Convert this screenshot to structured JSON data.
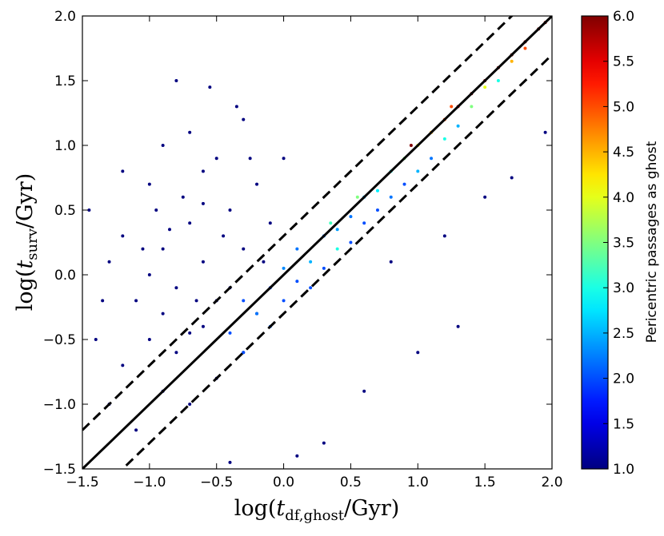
{
  "chart_data": {
    "type": "scatter",
    "xlabel": [
      "log(",
      "t",
      "df,ghost",
      "/Gyr)"
    ],
    "ylabel": [
      "log(",
      "t",
      "surv",
      "/Gyr)"
    ],
    "colorbar_label": "Pericentric passages as ghost",
    "colormap": "jet",
    "xlim": [
      -1.5,
      2.0
    ],
    "ylim": [
      -1.5,
      2.0
    ],
    "clim": [
      1.0,
      6.0
    ],
    "xticks": [
      {
        "value": -1.5,
        "label": "−1.5"
      },
      {
        "value": -1.0,
        "label": "−1.0"
      },
      {
        "value": -0.5,
        "label": "−0.5"
      },
      {
        "value": 0.0,
        "label": "0.0"
      },
      {
        "value": 0.5,
        "label": "0.5"
      },
      {
        "value": 1.0,
        "label": "1.0"
      },
      {
        "value": 1.5,
        "label": "1.5"
      },
      {
        "value": 2.0,
        "label": "2.0"
      }
    ],
    "yticks": [
      {
        "value": -1.5,
        "label": "−1.5"
      },
      {
        "value": -1.0,
        "label": "−1.0"
      },
      {
        "value": -0.5,
        "label": "−0.5"
      },
      {
        "value": 0.0,
        "label": "0.0"
      },
      {
        "value": 0.5,
        "label": "0.5"
      },
      {
        "value": 1.0,
        "label": "1.0"
      },
      {
        "value": 1.5,
        "label": "1.5"
      },
      {
        "value": 2.0,
        "label": "2.0"
      }
    ],
    "cticks": [
      {
        "value": 1.0,
        "label": "1.0"
      },
      {
        "value": 1.5,
        "label": "1.5"
      },
      {
        "value": 2.0,
        "label": "2.0"
      },
      {
        "value": 2.5,
        "label": "2.5"
      },
      {
        "value": 3.0,
        "label": "3.0"
      },
      {
        "value": 3.5,
        "label": "3.5"
      },
      {
        "value": 4.0,
        "label": "4.0"
      },
      {
        "value": 4.5,
        "label": "4.5"
      },
      {
        "value": 5.0,
        "label": "5.0"
      },
      {
        "value": 5.5,
        "label": "5.5"
      },
      {
        "value": 6.0,
        "label": "6.0"
      }
    ],
    "lines": [
      {
        "intercept": 0,
        "style": "solid"
      },
      {
        "intercept": 0.3,
        "style": "dashed"
      },
      {
        "intercept": -0.3,
        "style": "dashed"
      }
    ],
    "x": [
      -1.2,
      -1.0,
      -0.9,
      -0.8,
      -0.7,
      -0.6,
      -0.5,
      -0.9,
      -1.1,
      -0.75,
      -0.6,
      -0.4,
      -0.3,
      -1.3,
      -1.4,
      -1.2,
      -1.0,
      -0.8,
      -0.6,
      -0.4,
      -0.5,
      -0.3,
      -0.7,
      -0.9,
      -1.0,
      -1.2,
      -0.8,
      -0.55,
      -0.35,
      -0.2,
      -0.1,
      -0.2,
      -1.3,
      -1.1,
      -0.9,
      -0.7,
      -0.5,
      -1.45,
      -1.35,
      -0.65,
      -0.85,
      -0.95,
      -0.45,
      -0.25,
      -0.15,
      -1.05,
      -0.6,
      -0.7,
      -0.3,
      0.0,
      0.3,
      0.6,
      1.0,
      1.3,
      1.7,
      0.8,
      1.2,
      -0.4,
      0.1,
      1.95,
      1.5,
      -0.4,
      -0.3,
      -0.3,
      -0.2,
      -0.1,
      -0.1,
      0.0,
      0.0,
      0.1,
      0.1,
      0.2,
      0.2,
      0.3,
      0.3,
      0.4,
      0.4,
      0.5,
      0.5,
      0.6,
      0.6,
      0.7,
      0.7,
      0.8,
      0.8,
      0.9,
      0.9,
      1.0,
      1.0,
      1.1,
      1.1,
      1.2,
      1.2,
      1.3,
      1.3,
      1.4,
      1.4,
      1.5,
      1.5,
      1.6,
      1.6,
      1.7,
      1.7,
      1.8,
      1.8,
      1.9,
      1.95,
      0.95,
      1.25,
      0.55,
      0.35
    ],
    "values": [
      0.3,
      0.0,
      0.2,
      -0.1,
      0.4,
      0.1,
      -0.2,
      -0.3,
      -0.2,
      0.6,
      0.8,
      0.5,
      0.2,
      0.1,
      -0.5,
      -0.7,
      -0.5,
      -0.6,
      -0.4,
      -0.1,
      0.9,
      1.2,
      1.1,
      1.0,
      0.7,
      0.8,
      1.5,
      1.45,
      1.3,
      0.7,
      0.4,
      -0.3,
      -1.0,
      -1.2,
      -0.9,
      -1.0,
      -0.8,
      0.5,
      -0.2,
      -0.2,
      0.35,
      0.5,
      0.3,
      0.9,
      0.1,
      0.2,
      0.55,
      -0.45,
      -0.6,
      0.9,
      -1.3,
      -0.9,
      -0.6,
      -0.4,
      0.75,
      0.1,
      0.3,
      -1.45,
      -1.4,
      1.1,
      0.6,
      -0.45,
      -0.6,
      -0.2,
      -0.3,
      -0.1,
      -0.4,
      -0.2,
      0.05,
      -0.05,
      0.2,
      0.1,
      -0.1,
      0.3,
      0.05,
      0.35,
      0.2,
      0.45,
      0.25,
      0.6,
      0.4,
      0.65,
      0.5,
      0.8,
      0.6,
      0.9,
      0.7,
      1.0,
      0.8,
      1.1,
      0.9,
      1.2,
      1.05,
      1.3,
      1.15,
      1.4,
      1.3,
      1.5,
      1.45,
      1.6,
      1.5,
      1.7,
      1.65,
      1.8,
      1.75,
      1.9,
      1.95,
      1.0,
      1.3,
      0.6,
      0.4
    ],
    "c": [
      1,
      1,
      1,
      1,
      1,
      1,
      1,
      1,
      1,
      1,
      1,
      1,
      1,
      1,
      1,
      1,
      1,
      1,
      1,
      1,
      1,
      1,
      1,
      1,
      1,
      1,
      1,
      1,
      1,
      1,
      1,
      1,
      1,
      1,
      1,
      1,
      1,
      1,
      1,
      1,
      1,
      1,
      1,
      1,
      1,
      1,
      1,
      1,
      1,
      1,
      1,
      1,
      1,
      1,
      1,
      1,
      1,
      1,
      1,
      1,
      1,
      2,
      2,
      2,
      2.2,
      2,
      2.1,
      2,
      2.3,
      2,
      2.2,
      2.5,
      2,
      2.2,
      2,
      2.4,
      3,
      2.2,
      2,
      2.5,
      2,
      2.8,
      2,
      3,
      2.2,
      3.5,
      2,
      4,
      2.5,
      4.5,
      2.2,
      5,
      3,
      5.5,
      2.5,
      6,
      3.5,
      6,
      4,
      6,
      3,
      6,
      4.5,
      6,
      5,
      6,
      6,
      6,
      5,
      3.5,
      3.2
    ]
  }
}
